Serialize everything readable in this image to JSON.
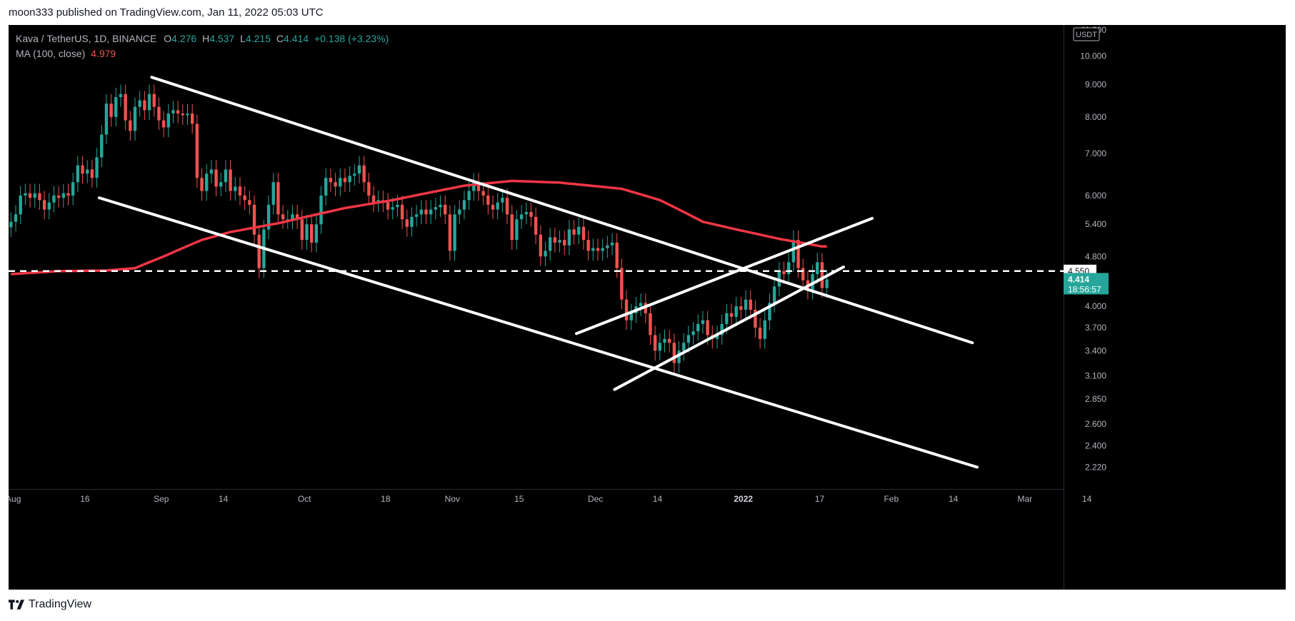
{
  "header": {
    "published": "moon333 published on TradingView.com, Jan 11, 2022 05:03 UTC"
  },
  "legend": {
    "symbol": "Kava / TetherUS, 1D, BINANCE",
    "o_label": "O",
    "o": "4.276",
    "h_label": "H",
    "h": "4.537",
    "l_label": "L",
    "l": "4.215",
    "c_label": "C",
    "c": "4.414",
    "change": "+0.138 (+3.23%)",
    "ma_label": "MA (100, close)",
    "ma_value": "4.979"
  },
  "footer": {
    "brand": "TradingView",
    "logo_icon": "tradingview-logo-icon"
  },
  "colors": {
    "up": "#26a69a",
    "down": "#ef5350",
    "ma": "#f23645",
    "lines": "#ffffff",
    "bg": "#000000",
    "axis_text": "#b2b5be"
  },
  "chart_data": {
    "type": "candlestick",
    "y_scale": "log",
    "y_unit": "USDT",
    "ylim": [
      2.05,
      11.2
    ],
    "y_ticks": [
      "11.000",
      "10.000",
      "9.000",
      "8.000",
      "7.000",
      "6.000",
      "5.400",
      "4.800",
      "4.000",
      "3.700",
      "3.400",
      "3.100",
      "2.850",
      "2.600",
      "2.400",
      "2.220"
    ],
    "x_start": "2021-07-31",
    "x_end": "2022-02-28",
    "x_ticks": [
      {
        "label": "Aug",
        "date": "2021-08-01"
      },
      {
        "label": "16",
        "date": "2021-08-16"
      },
      {
        "label": "Sep",
        "date": "2021-09-01"
      },
      {
        "label": "14",
        "date": "2021-09-14"
      },
      {
        "label": "Oct",
        "date": "2021-10-01"
      },
      {
        "label": "18",
        "date": "2021-10-18"
      },
      {
        "label": "Nov",
        "date": "2021-11-01"
      },
      {
        "label": "15",
        "date": "2021-11-15"
      },
      {
        "label": "Dec",
        "date": "2021-12-01"
      },
      {
        "label": "14",
        "date": "2021-12-14"
      },
      {
        "label": "2022",
        "date": "2022-01-01"
      },
      {
        "label": "17",
        "date": "2022-01-17"
      },
      {
        "label": "Feb",
        "date": "2022-02-01"
      },
      {
        "label": "14",
        "date": "2022-02-14"
      },
      {
        "label": "Mar",
        "date": "2022-03-01"
      },
      {
        "label": "14",
        "date": "2022-03-14"
      }
    ],
    "candles_start": "2021-07-31",
    "closes": [
      5.45,
      5.6,
      6.0,
      6.05,
      5.95,
      6.05,
      5.9,
      5.7,
      5.85,
      6.0,
      5.95,
      6.05,
      6.0,
      6.3,
      6.7,
      6.5,
      6.6,
      6.4,
      6.9,
      7.5,
      8.4,
      8.0,
      8.6,
      8.7,
      7.9,
      7.6,
      8.3,
      8.5,
      8.2,
      8.7,
      8.3,
      7.9,
      7.7,
      8.1,
      8.2,
      8.1,
      8.05,
      8.1,
      7.8,
      6.4,
      6.1,
      6.5,
      6.6,
      6.2,
      6.3,
      6.6,
      6.1,
      6.2,
      6.0,
      5.9,
      5.8,
      5.2,
      4.6,
      5.3,
      5.8,
      6.3,
      5.6,
      5.5,
      5.5,
      5.6,
      5.5,
      5.1,
      5.4,
      5.05,
      5.4,
      6.0,
      6.4,
      6.3,
      6.2,
      6.4,
      6.3,
      6.45,
      6.5,
      6.7,
      6.3,
      6.0,
      5.85,
      5.9,
      5.85,
      5.7,
      5.75,
      5.8,
      5.5,
      5.35,
      5.55,
      5.6,
      5.7,
      5.6,
      5.7,
      5.75,
      5.8,
      5.6,
      4.9,
      5.6,
      5.7,
      5.9,
      6.1,
      6.3,
      6.1,
      6.0,
      5.8,
      5.7,
      5.85,
      5.95,
      5.6,
      5.1,
      5.5,
      5.6,
      5.65,
      5.55,
      5.2,
      4.8,
      4.9,
      5.15,
      5.05,
      5.1,
      5.0,
      5.3,
      5.2,
      5.35,
      5.1,
      4.9,
      4.95,
      4.9,
      4.95,
      5.0,
      5.05,
      4.6,
      4.1,
      3.8,
      3.9,
      4.0,
      4.05,
      3.9,
      3.6,
      3.4,
      3.5,
      3.55,
      3.5,
      3.25,
      3.4,
      3.5,
      3.6,
      3.65,
      3.75,
      3.8,
      3.6,
      3.55,
      3.6,
      3.75,
      3.9,
      3.85,
      4.0,
      3.95,
      4.1,
      3.95,
      3.7,
      3.55,
      3.8,
      4.05,
      4.3,
      4.55,
      4.5,
      4.7,
      5.1,
      4.6,
      4.4,
      4.25,
      4.5,
      4.7,
      4.276,
      4.414
    ],
    "ma100_anchors": [
      [
        0,
        4.5
      ],
      [
        10,
        4.55
      ],
      [
        20,
        4.56
      ],
      [
        26,
        4.6
      ],
      [
        32,
        4.8
      ],
      [
        40,
        5.1
      ],
      [
        46,
        5.25
      ],
      [
        56,
        5.42
      ],
      [
        70,
        5.73
      ],
      [
        80,
        5.9
      ],
      [
        95,
        6.22
      ],
      [
        105,
        6.33
      ],
      [
        115,
        6.29
      ],
      [
        128,
        6.15
      ],
      [
        136,
        5.9
      ],
      [
        145,
        5.45
      ],
      [
        152,
        5.3
      ],
      [
        161,
        5.12
      ],
      [
        170,
        4.979
      ]
    ],
    "horizontal_level": {
      "value": 4.55,
      "label": "4.550",
      "style": "dashed"
    },
    "last_price": {
      "value": 4.414,
      "label": "4.414",
      "countdown": "18:56:57"
    },
    "trendlines": [
      {
        "name": "upper-channel-line",
        "from": [
          "2021-08-30",
          9.25
        ],
        "to": [
          "2022-02-18",
          3.5
        ]
      },
      {
        "name": "lower-channel-line",
        "from": [
          "2021-08-19",
          5.95
        ],
        "to": [
          "2022-02-19",
          2.22
        ]
      },
      {
        "name": "wedge-upper-line",
        "from": [
          "2021-11-27",
          3.62
        ],
        "to": [
          "2022-01-28",
          5.52
        ]
      },
      {
        "name": "wedge-lower-line",
        "from": [
          "2021-12-05",
          2.95
        ],
        "to": [
          "2022-01-22",
          4.62
        ]
      }
    ]
  }
}
